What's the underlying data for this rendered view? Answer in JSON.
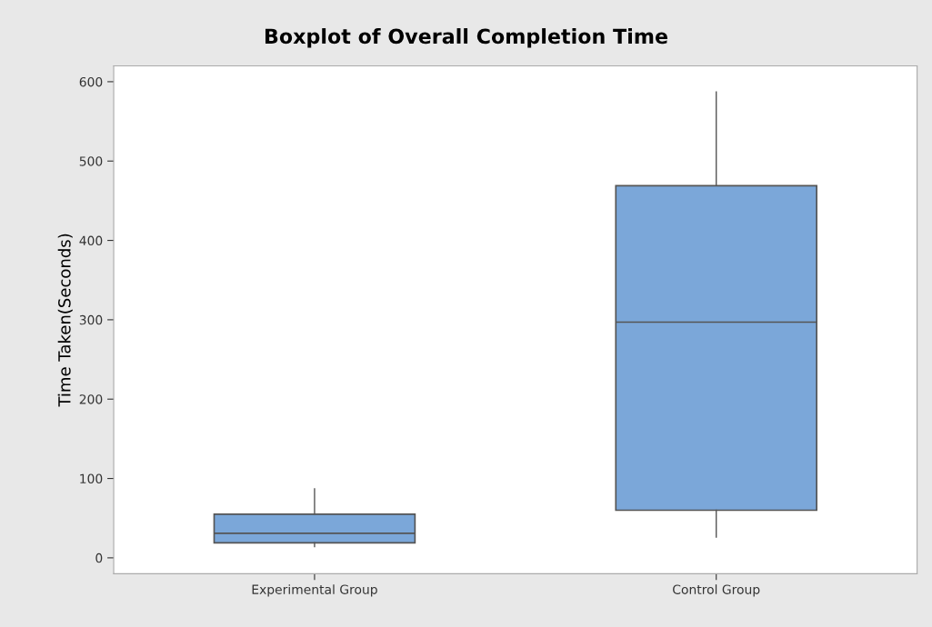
{
  "chart_data": {
    "type": "box",
    "title": "Boxplot of Overall Completion Time",
    "ylabel": "Time Taken(Seconds)",
    "categories": [
      "Experimental Group",
      "Control Group"
    ],
    "boxes": [
      {
        "low": 14,
        "q1": 19,
        "median": 31,
        "q3": 55,
        "high": 87
      },
      {
        "low": 26,
        "q1": 60,
        "median": 297,
        "q3": 469,
        "high": 587
      }
    ],
    "color": "#7ba7d9",
    "ylim": [
      -20,
      620
    ],
    "yticks": [
      0,
      100,
      200,
      300,
      400,
      500,
      600
    ],
    "grid": false,
    "legend": false
  }
}
